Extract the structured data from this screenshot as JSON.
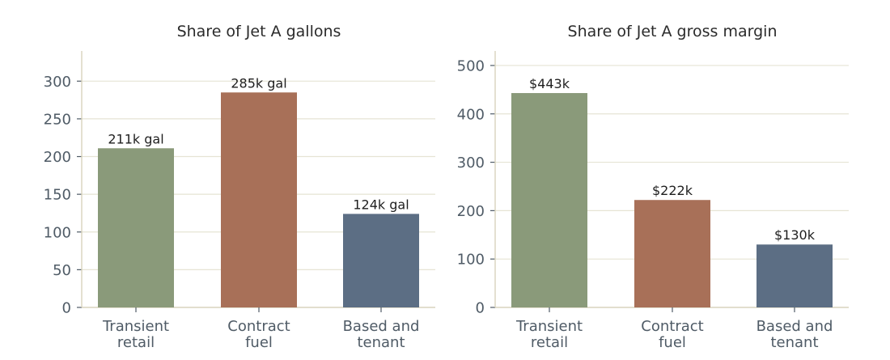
{
  "chart_data": [
    {
      "type": "bar",
      "title": "Share of Jet A gallons",
      "xlabel": "",
      "ylabel": "",
      "categories": [
        "Transient retail",
        "Contract fuel",
        "Based and tenant"
      ],
      "category_lines": [
        [
          "Transient",
          "retail"
        ],
        [
          "Contract",
          "fuel"
        ],
        [
          "Based and",
          "tenant"
        ]
      ],
      "values": [
        211,
        285,
        124
      ],
      "data_labels": [
        "211k gal",
        "285k gal",
        "124k gal"
      ],
      "yticks": [
        0,
        50,
        100,
        150,
        200,
        250,
        300
      ],
      "ylim": [
        0,
        340
      ],
      "grid": true,
      "legend": "none",
      "colors": [
        "#8a9a7a",
        "#a87058",
        "#5c6e84"
      ]
    },
    {
      "type": "bar",
      "title": "Share of Jet A gross margin",
      "xlabel": "",
      "ylabel": "",
      "categories": [
        "Transient retail",
        "Contract fuel",
        "Based and tenant"
      ],
      "category_lines": [
        [
          "Transient",
          "retail"
        ],
        [
          "Contract",
          "fuel"
        ],
        [
          "Based and",
          "tenant"
        ]
      ],
      "values": [
        443,
        222,
        130
      ],
      "data_labels": [
        "$443k",
        "$222k",
        "$130k"
      ],
      "yticks": [
        0,
        100,
        200,
        300,
        400,
        500
      ],
      "ylim": [
        0,
        530
      ],
      "grid": true,
      "legend": "none",
      "colors": [
        "#8a9a7a",
        "#a87058",
        "#5c6e84"
      ]
    }
  ]
}
